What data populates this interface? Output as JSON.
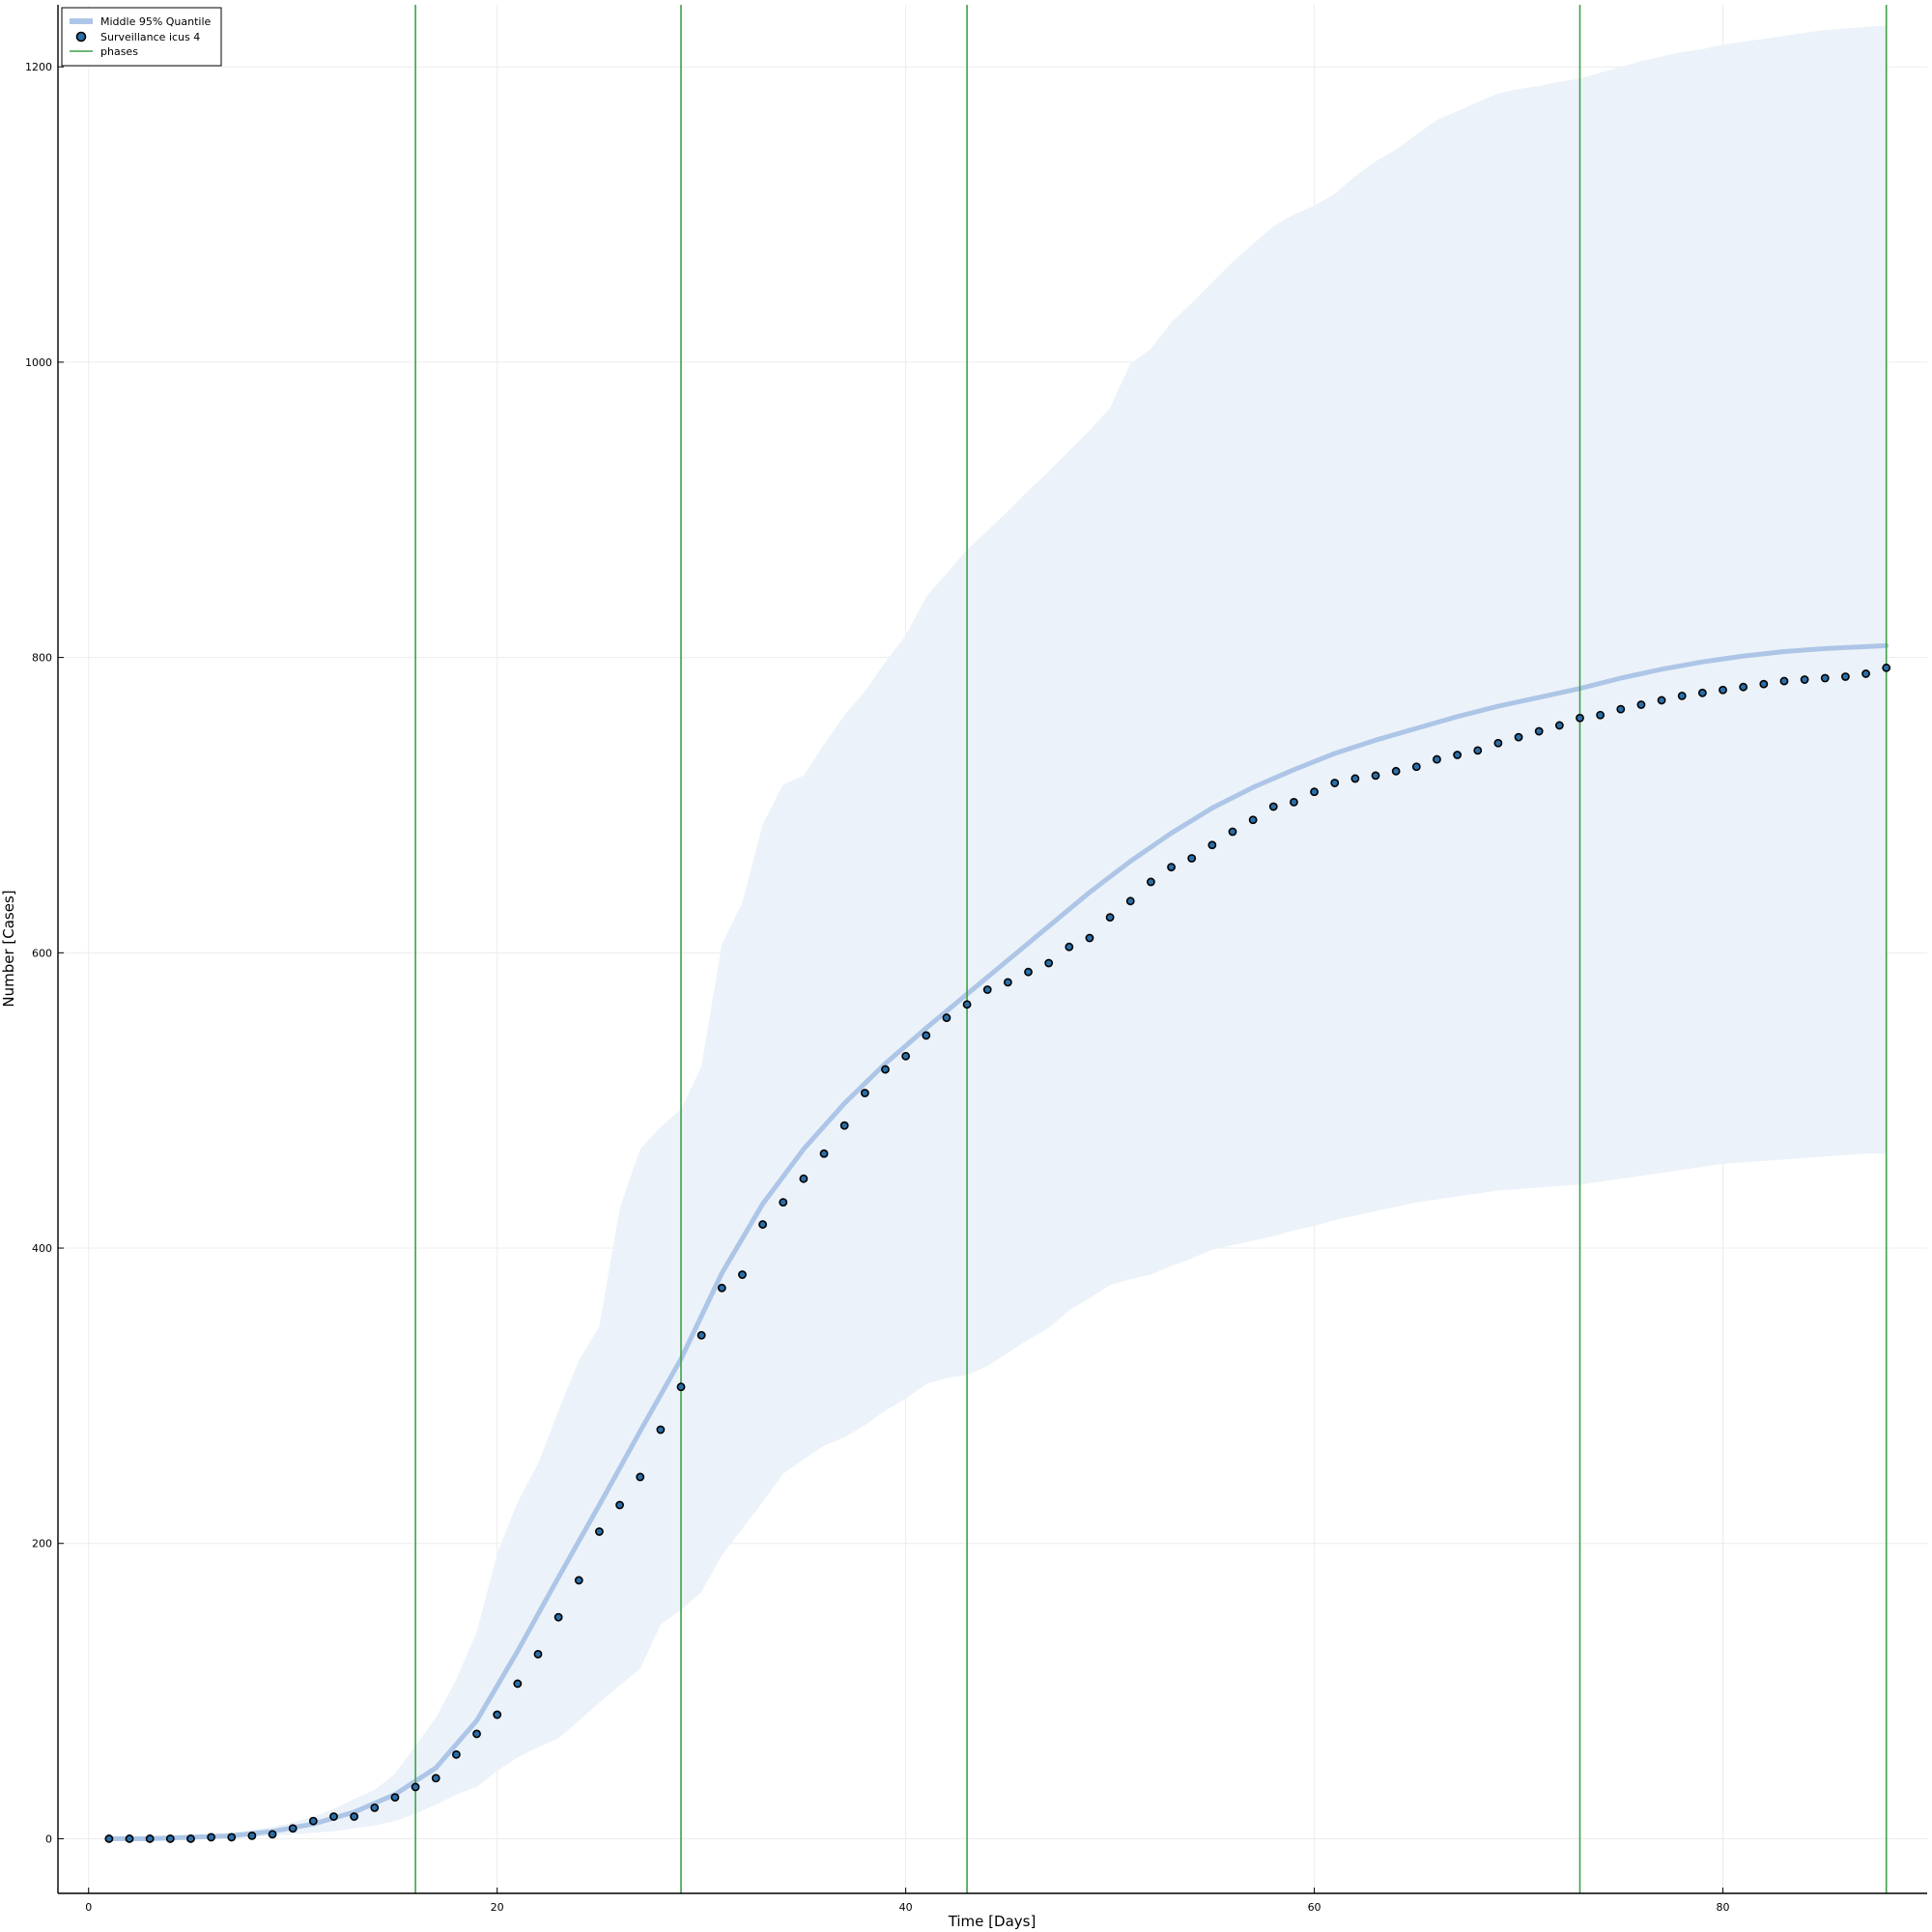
{
  "chart_data": {
    "type": "line",
    "xlabel": "Time [Days]",
    "ylabel": "Number [Cases]",
    "xlim": [
      -1.5,
      90
    ],
    "ylim": [
      -37,
      1242
    ],
    "xticks": [
      0,
      20,
      40,
      60,
      80
    ],
    "yticks": [
      0,
      200,
      400,
      600,
      800,
      1000,
      1200
    ],
    "grid": true,
    "legend_position": "top-left",
    "legend": [
      {
        "label": "Middle 95% Quantile",
        "kind": "line-band"
      },
      {
        "label": "Surveillance icus 4",
        "kind": "marker"
      },
      {
        "label": "phases",
        "kind": "vline"
      }
    ],
    "colors": {
      "median": "#adc6e7",
      "band": "#ecf2f9",
      "marker": "#2a6fa8",
      "marker_edge": "#000000",
      "phase": "#3ea048",
      "grid": "#ececec"
    },
    "band": {
      "x": [
        1,
        2,
        3,
        4,
        5,
        6,
        7,
        8,
        9,
        10,
        11,
        12,
        13,
        14,
        15,
        16,
        17,
        18,
        19,
        20,
        21,
        22,
        23,
        24,
        25,
        26,
        27,
        28,
        29,
        30,
        31,
        32,
        33,
        34,
        35,
        36,
        37,
        38,
        39,
        40,
        41,
        42,
        43,
        44,
        45,
        46,
        47,
        48,
        49,
        50,
        51,
        52,
        53,
        54,
        55,
        56,
        57,
        58,
        59,
        60,
        61,
        62,
        63,
        64,
        65,
        66,
        67,
        68,
        69,
        70,
        71,
        72,
        73,
        74,
        75,
        76,
        77,
        78,
        79,
        80,
        81,
        82,
        83,
        84,
        85,
        86,
        87,
        88
      ],
      "upper": [
        1,
        1,
        1,
        2,
        2,
        3,
        4,
        6,
        8,
        11,
        15,
        20,
        27,
        33,
        44,
        63,
        82,
        108,
        140,
        193,
        228,
        254,
        290,
        324,
        347,
        427,
        467,
        482,
        494,
        523,
        606,
        634,
        687,
        714,
        720,
        741,
        761,
        777,
        797,
        815,
        841,
        857,
        873,
        886,
        899,
        913,
        926,
        940,
        954,
        969,
        999,
        1009,
        1027,
        1040,
        1054,
        1068,
        1080,
        1092,
        1100,
        1106,
        1114,
        1126,
        1136,
        1144,
        1154,
        1164,
        1170,
        1176,
        1182,
        1185,
        1187,
        1190,
        1192,
        1196,
        1200,
        1204,
        1207,
        1210,
        1212,
        1215,
        1217,
        1219,
        1221,
        1223,
        1225,
        1226,
        1227,
        1228
      ],
      "lower": [
        0,
        0,
        0,
        0,
        0,
        0,
        0,
        1,
        2,
        3,
        4,
        5,
        7,
        9,
        12,
        17,
        23,
        30,
        35,
        46,
        55,
        62,
        68,
        80,
        92,
        104,
        115,
        145,
        155,
        167,
        192,
        210,
        228,
        247,
        257,
        266,
        272,
        280,
        290,
        298,
        308,
        312,
        314,
        320,
        329,
        338,
        346,
        358,
        366,
        375,
        379,
        382,
        388,
        393,
        399,
        402,
        405,
        408,
        412,
        415,
        419,
        422,
        425,
        428,
        431,
        433,
        435,
        437,
        439,
        440,
        441,
        442,
        443,
        445,
        447,
        449,
        451,
        453,
        455,
        457,
        458,
        459,
        460,
        461,
        462,
        463,
        464,
        464
      ]
    },
    "median": {
      "x": [
        1,
        3,
        5,
        7,
        9,
        11,
        13,
        15,
        17,
        19,
        21,
        23,
        25,
        27,
        29,
        31,
        33,
        35,
        37,
        39,
        41,
        43,
        45,
        47,
        49,
        51,
        53,
        55,
        57,
        59,
        61,
        63,
        65,
        67,
        69,
        71,
        73,
        75,
        77,
        79,
        81,
        83,
        85,
        88
      ],
      "values": [
        0,
        0,
        1,
        2,
        5,
        10,
        18,
        30,
        48,
        80,
        127,
        177,
        226,
        276,
        325,
        383,
        430,
        467,
        498,
        525,
        549,
        572,
        595,
        618,
        641,
        662,
        681,
        698,
        712,
        724,
        735,
        744,
        752,
        760,
        767,
        773,
        779,
        786,
        792,
        797,
        801,
        804,
        806,
        808
      ]
    },
    "surveillance": {
      "x": [
        1,
        2,
        3,
        4,
        5,
        6,
        7,
        8,
        9,
        10,
        11,
        12,
        13,
        14,
        15,
        16,
        17,
        18,
        19,
        20,
        21,
        22,
        23,
        24,
        25,
        26,
        27,
        28,
        29,
        30,
        31,
        32,
        33,
        34,
        35,
        36,
        37,
        38,
        39,
        40,
        41,
        42,
        43,
        44,
        45,
        46,
        47,
        48,
        49,
        50,
        51,
        52,
        53,
        54,
        55,
        56,
        57,
        58,
        59,
        60,
        61,
        62,
        63,
        64,
        65,
        66,
        67,
        68,
        69,
        70,
        71,
        72,
        73,
        74,
        75,
        76,
        77,
        78,
        79,
        80,
        81,
        82,
        83,
        84,
        85,
        86,
        87,
        88
      ],
      "values": [
        0,
        0,
        0,
        0,
        0,
        1,
        1,
        2,
        3,
        7,
        12,
        15,
        15,
        21,
        28,
        35,
        41,
        57,
        71,
        84,
        105,
        125,
        150,
        175,
        208,
        226,
        245,
        277,
        306,
        341,
        373,
        382,
        416,
        431,
        447,
        464,
        483,
        505,
        521,
        530,
        544,
        556,
        565,
        575,
        580,
        587,
        593,
        604,
        610,
        624,
        635,
        648,
        658,
        664,
        673,
        682,
        690,
        699,
        702,
        709,
        715,
        718,
        720,
        723,
        726,
        731,
        734,
        737,
        742,
        746,
        750,
        754,
        759,
        761,
        765,
        768,
        771,
        774,
        776,
        778,
        780,
        782,
        784,
        785,
        786,
        787,
        789,
        793
      ]
    },
    "phases": [
      16,
      29,
      43,
      73,
      88
    ]
  }
}
